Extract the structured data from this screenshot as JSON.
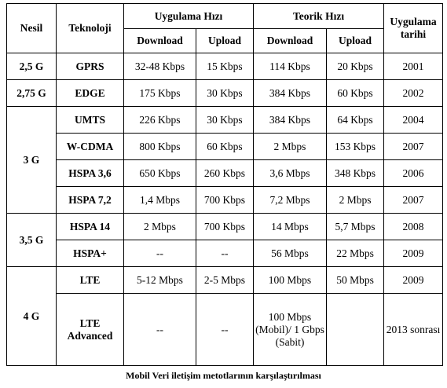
{
  "header": {
    "generation": "Nesil",
    "technology": "Teknoloji",
    "app_speed": "Uygulama Hızı",
    "theoretical_speed": "Teorik Hızı",
    "app_date_line1": "Uygulama",
    "app_date_line2": "tarihi",
    "download": "Download",
    "upload": "Upload"
  },
  "groups": [
    {
      "generation": "2,5 G",
      "rows": [
        {
          "tech": "GPRS",
          "app_down": "32-48 Kbps",
          "app_up": "15 Kbps",
          "th_down": "114 Kbps",
          "th_up": "20 Kbps",
          "year": "2001"
        }
      ]
    },
    {
      "generation": "2,75 G",
      "rows": [
        {
          "tech": "EDGE",
          "app_down": "175 Kbps",
          "app_up": "30 Kbps",
          "th_down": "384 Kbps",
          "th_up": "60 Kbps",
          "year": "2002"
        }
      ]
    },
    {
      "generation": "3 G",
      "rows": [
        {
          "tech": "UMTS",
          "app_down": "226 Kbps",
          "app_up": "30 Kbps",
          "th_down": "384 Kbps",
          "th_up": "64 Kbps",
          "year": "2004"
        },
        {
          "tech": "W-CDMA",
          "app_down": "800 Kbps",
          "app_up": "60 Kbps",
          "th_down": "2 Mbps",
          "th_up": "153 Kbps",
          "year": "2007"
        },
        {
          "tech": "HSPA 3,6",
          "app_down": "650 Kbps",
          "app_up": "260 Kbps",
          "th_down": "3,6 Mbps",
          "th_up": "348 Kbps",
          "year": "2006"
        },
        {
          "tech": "HSPA 7,2",
          "app_down": "1,4 Mbps",
          "app_up": "700 Kbps",
          "th_down": "7,2 Mbps",
          "th_up": "2 Mbps",
          "year": "2007"
        }
      ]
    },
    {
      "generation": "3,5 G",
      "rows": [
        {
          "tech": "HSPA 14",
          "app_down": "2 Mbps",
          "app_up": "700 Kbps",
          "th_down": "14 Mbps",
          "th_up": "5,7 Mbps",
          "year": "2008"
        },
        {
          "tech": "HSPA+",
          "app_down": "--",
          "app_up": "--",
          "th_down": "56 Mbps",
          "th_up": "22 Mbps",
          "year": "2009"
        }
      ]
    },
    {
      "generation": "4 G",
      "rows": [
        {
          "tech": "LTE",
          "app_down": "5-12 Mbps",
          "app_up": "2-5 Mbps",
          "th_down": "100 Mbps",
          "th_up": "50 Mbps",
          "year": "2009"
        },
        {
          "tech": "LTE Advanced",
          "app_down": "--",
          "app_up": "--",
          "th_down": "100 Mbps (Mobil)/ 1 Gbps (Sabit)",
          "th_up": "",
          "year": "2013 sonrası"
        }
      ]
    }
  ],
  "caption": "Mobil Veri iletişim metotlarının karşılaştırılması"
}
